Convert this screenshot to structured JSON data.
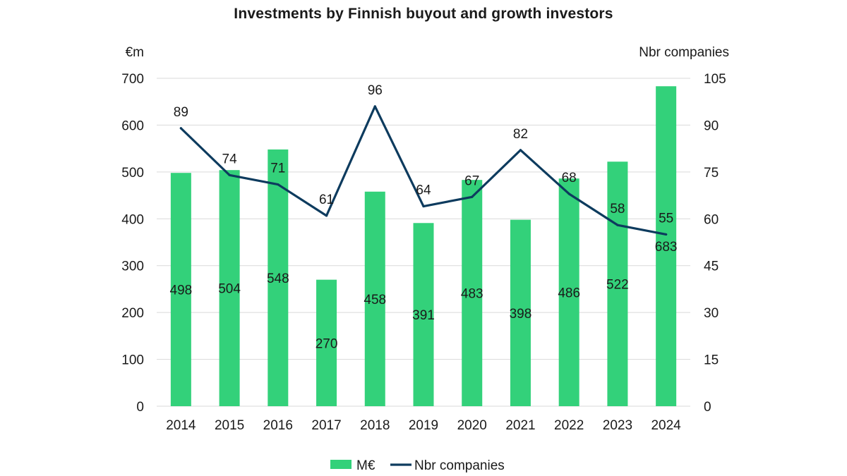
{
  "chart_data": {
    "type": "bar",
    "title": "Investments by Finnish buyout and growth investors",
    "categories": [
      "2014",
      "2015",
      "2016",
      "2017",
      "2018",
      "2019",
      "2020",
      "2021",
      "2022",
      "2023",
      "2024"
    ],
    "series": [
      {
        "name": "M€",
        "type": "bar",
        "axis": "left",
        "color": "#33d17a",
        "values": [
          498,
          504,
          548,
          270,
          458,
          391,
          483,
          398,
          486,
          522,
          683
        ]
      },
      {
        "name": "Nbr companies",
        "type": "line",
        "axis": "right",
        "color": "#0d3b5e",
        "values": [
          89,
          74,
          71,
          61,
          96,
          64,
          67,
          82,
          68,
          58,
          55
        ]
      }
    ],
    "y_left": {
      "label": "€m",
      "min": 0,
      "max": 700,
      "ticks": [
        "0",
        "100",
        "200",
        "300",
        "400",
        "500",
        "600",
        "700"
      ]
    },
    "y_right": {
      "label": "Nbr companies",
      "min": 0,
      "max": 105,
      "ticks": [
        "0",
        "15",
        "30",
        "45",
        "60",
        "75",
        "90",
        "105"
      ]
    },
    "grid": true,
    "legend": "bottom-center"
  }
}
